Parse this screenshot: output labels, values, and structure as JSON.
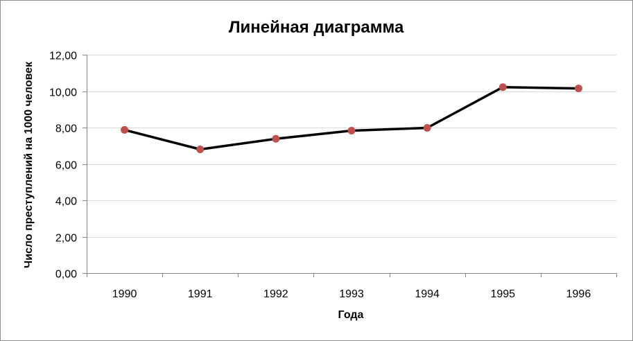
{
  "chart_data": {
    "type": "line",
    "title": "Линейная диаграмма",
    "xlabel": "Года",
    "ylabel": "Число преступлений на 1000 человек",
    "categories": [
      "1990",
      "1991",
      "1992",
      "1993",
      "1994",
      "1995",
      "1996"
    ],
    "series": [
      {
        "values": [
          7.87,
          6.8,
          7.38,
          7.83,
          7.98,
          10.22,
          10.15
        ]
      }
    ],
    "ylim": [
      0,
      12
    ],
    "yticks": [
      0,
      2,
      4,
      6,
      8,
      10,
      12
    ],
    "ytick_labels": [
      "0,00",
      "2,00",
      "4,00",
      "6,00",
      "8,00",
      "10,00",
      "12,00"
    ],
    "grid": "horizontal",
    "legend": "none",
    "colors": {
      "line": "#000000",
      "marker": "#C0504D",
      "grid": "#d9d9d9",
      "axis": "#868686",
      "border": "#8c8c8c"
    }
  }
}
